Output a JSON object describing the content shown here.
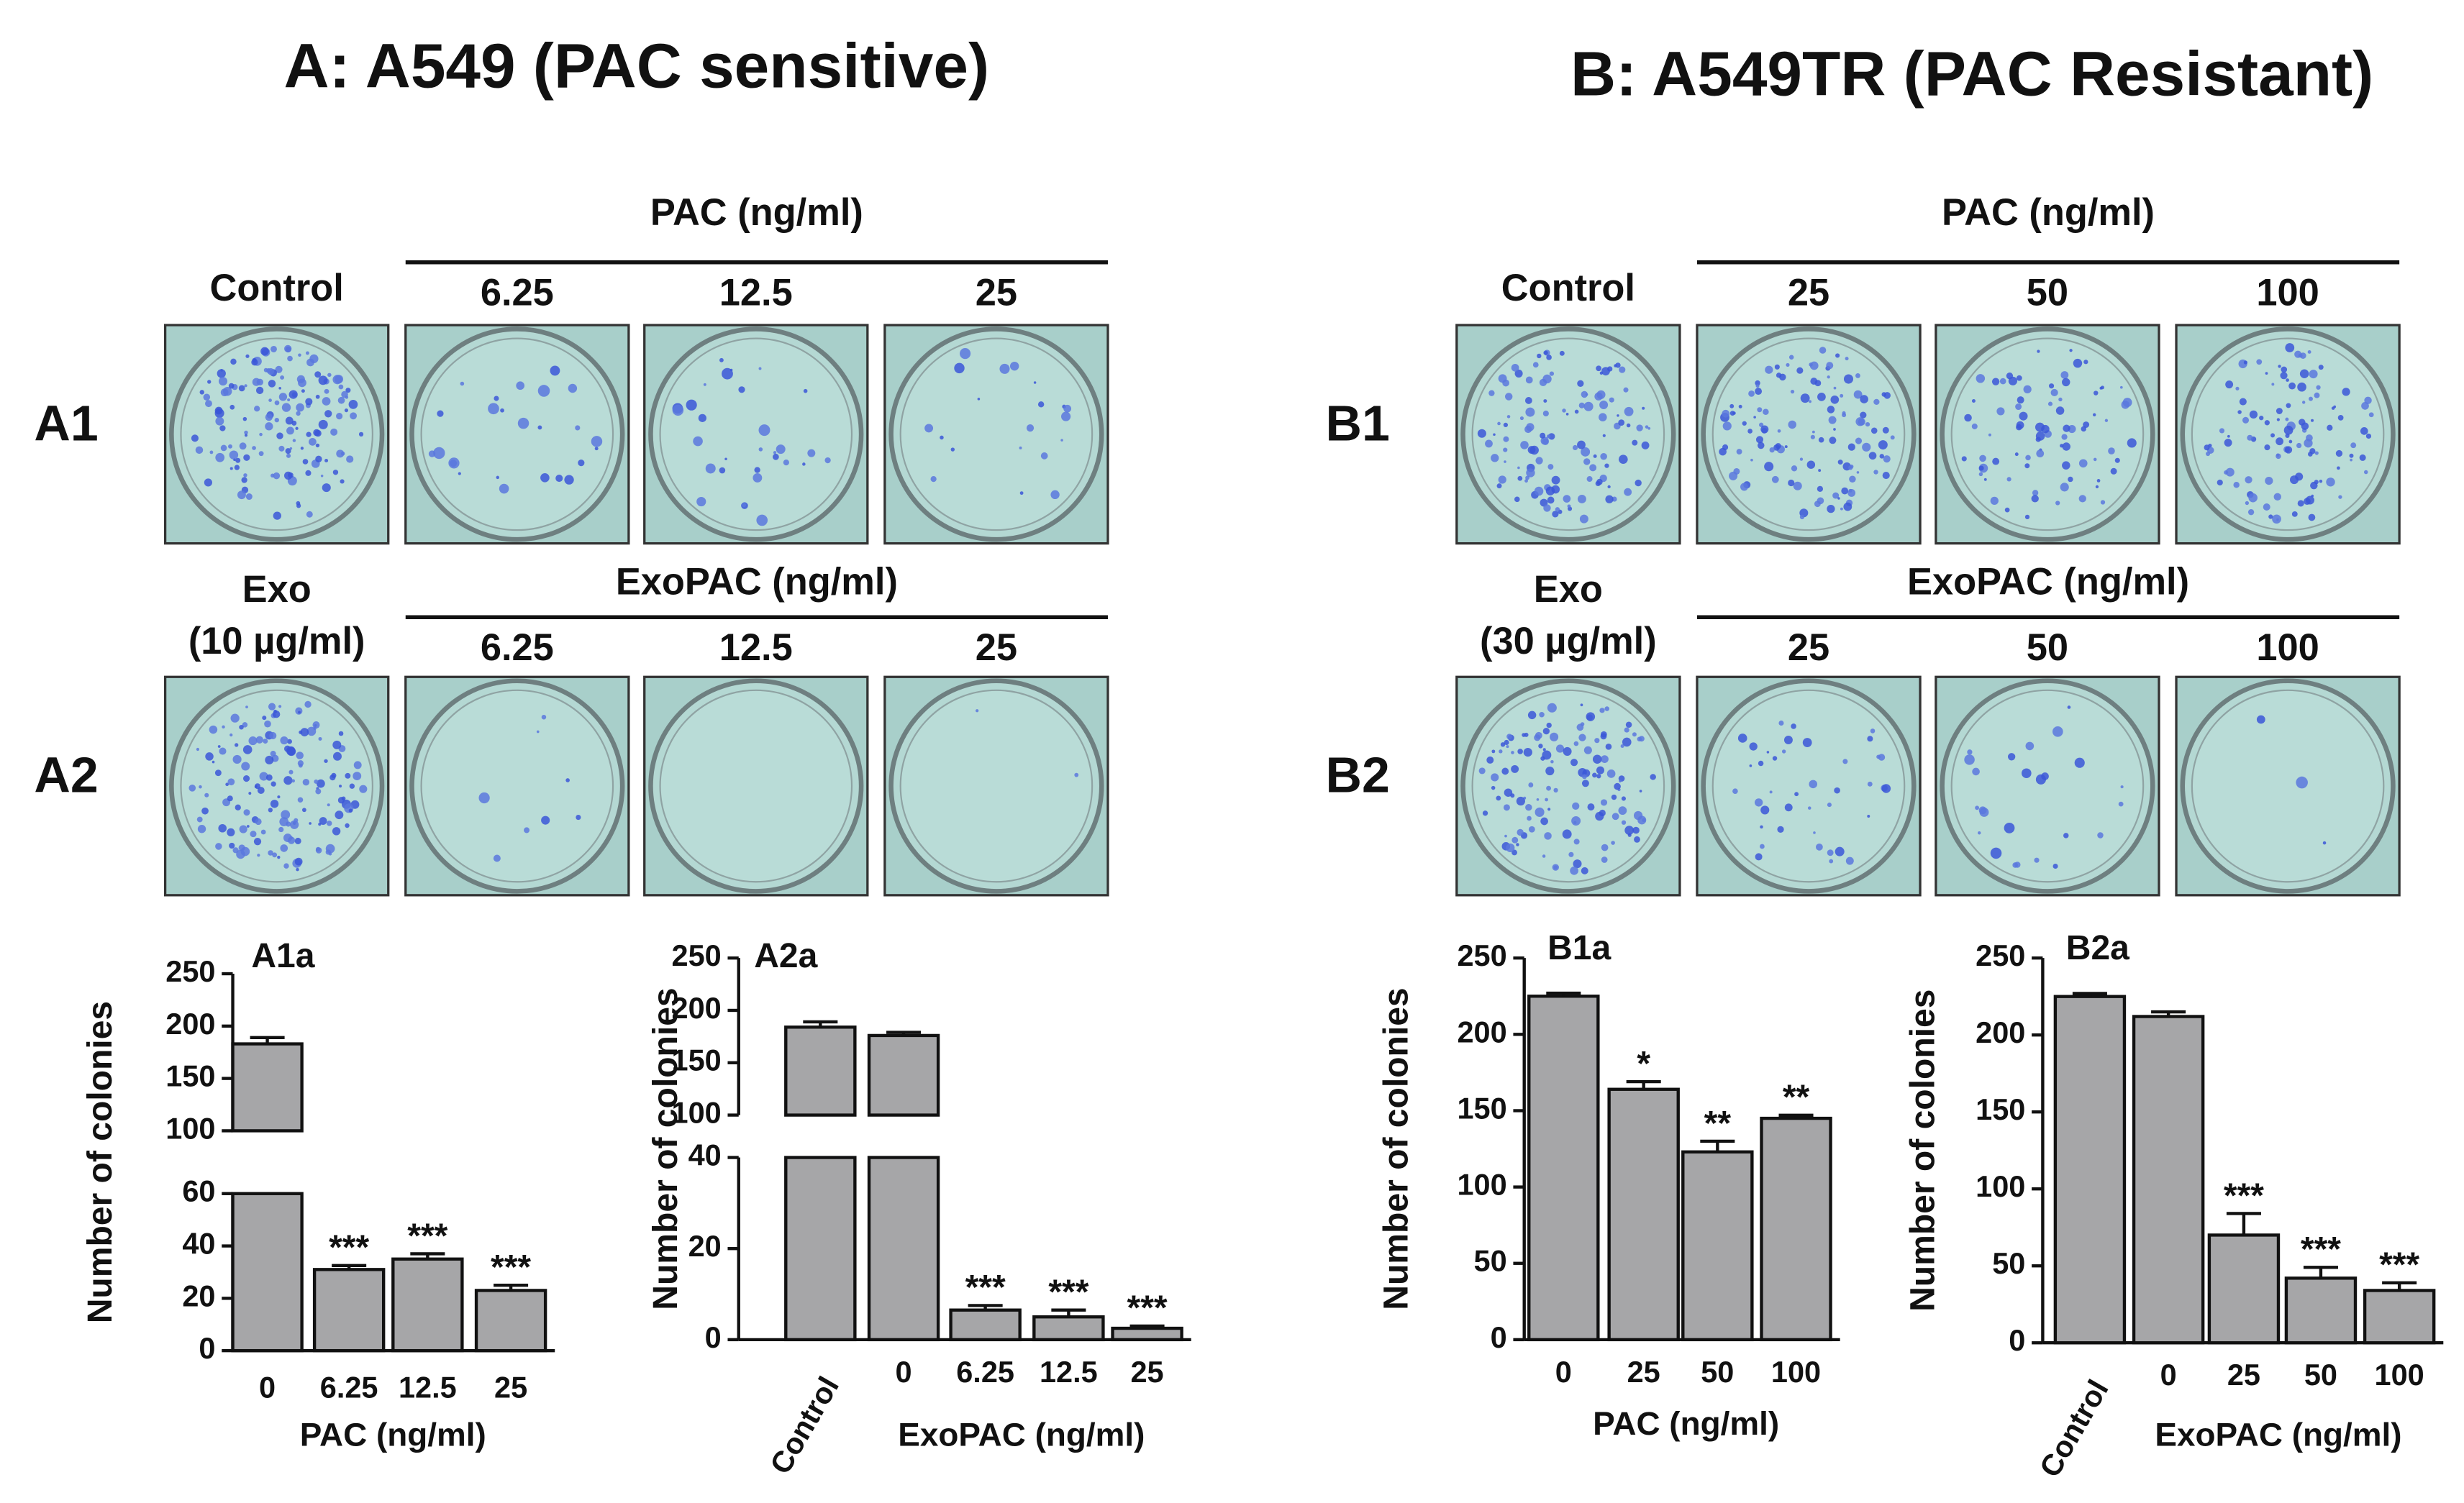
{
  "panels": [
    {
      "title": "A: A549 (PAC sensitive)",
      "rows": [
        {
          "label": "A1",
          "first": [
            "Control"
          ],
          "group": "PAC (ng/ml)",
          "doses": [
            "6.25",
            "12.5",
            "25"
          ]
        },
        {
          "label": "A2",
          "first": [
            "Exo",
            "(10 µg/ml)"
          ],
          "group": "ExoPAC (ng/ml)",
          "doses": [
            "6.25",
            "12.5",
            "25"
          ]
        }
      ]
    },
    {
      "title": "B: A549TR (PAC Resistant)",
      "rows": [
        {
          "label": "B1",
          "first": [
            "Control"
          ],
          "group": "PAC (ng/ml)",
          "doses": [
            "25",
            "50",
            "100"
          ]
        },
        {
          "label": "B2",
          "first": [
            "Exo",
            "(30 µg/ml)"
          ],
          "group": "ExoPAC (ng/ml)",
          "doses": [
            "25",
            "50",
            "100"
          ]
        }
      ]
    }
  ],
  "chart_data": [
    {
      "type": "bar",
      "title": "A1a",
      "y_label": "Number of colonies",
      "x_label": "PAC (ng/ml)",
      "categories": [
        "0",
        "6.25",
        "12.5",
        "25"
      ],
      "values": [
        183,
        31,
        35,
        23
      ],
      "errors": [
        6,
        1.5,
        2,
        2
      ],
      "annotations": [
        null,
        "***",
        "***",
        "***"
      ],
      "color": "#a6a6a8",
      "y_segments": [
        {
          "ylim": [
            0,
            60
          ],
          "yticks": [
            0,
            20,
            40,
            60
          ]
        },
        {
          "ylim": [
            100,
            250
          ],
          "yticks": [
            100,
            150,
            200,
            250
          ]
        }
      ]
    },
    {
      "type": "bar",
      "title": "A2a",
      "y_label": "Number of colonies",
      "x_label": "ExoPAC (ng/ml)",
      "categories": [
        "Control",
        "0",
        "6.25",
        "12.5",
        "25"
      ],
      "values": [
        184,
        176,
        6.5,
        5,
        2.5
      ],
      "errors": [
        5,
        3,
        1,
        1.5,
        0.5
      ],
      "annotations": [
        null,
        null,
        "***",
        "***",
        "***"
      ],
      "color": "#a6a6a8",
      "y_segments": [
        {
          "ylim": [
            0,
            40
          ],
          "yticks": [
            0,
            20,
            40
          ]
        },
        {
          "ylim": [
            100,
            250
          ],
          "yticks": [
            100,
            150,
            200,
            250
          ]
        }
      ]
    },
    {
      "type": "bar",
      "title": "B1a",
      "y_label": "Number of colonies",
      "x_label": "PAC (ng/ml)",
      "categories": [
        "0",
        "25",
        "50",
        "100"
      ],
      "values": [
        225,
        164,
        123,
        145
      ],
      "errors": [
        2,
        5,
        7,
        2
      ],
      "annotations": [
        null,
        "*",
        "**",
        "**"
      ],
      "color": "#a6a6a8",
      "y_segments": [
        {
          "ylim": [
            0,
            250
          ],
          "yticks": [
            0,
            50,
            100,
            150,
            200,
            250
          ]
        }
      ]
    },
    {
      "type": "bar",
      "title": "B2a",
      "y_label": "Number of colonies",
      "x_label": "ExoPAC (ng/ml)",
      "categories": [
        "Control",
        "0",
        "25",
        "50",
        "100"
      ],
      "values": [
        225,
        212,
        70,
        42,
        34
      ],
      "errors": [
        2,
        3,
        14,
        7,
        5
      ],
      "annotations": [
        null,
        null,
        "***",
        "***",
        "***"
      ],
      "color": "#a6a6a8",
      "y_segments": [
        {
          "ylim": [
            0,
            250
          ],
          "yticks": [
            0,
            50,
            100,
            150,
            200,
            250
          ]
        }
      ]
    }
  ]
}
